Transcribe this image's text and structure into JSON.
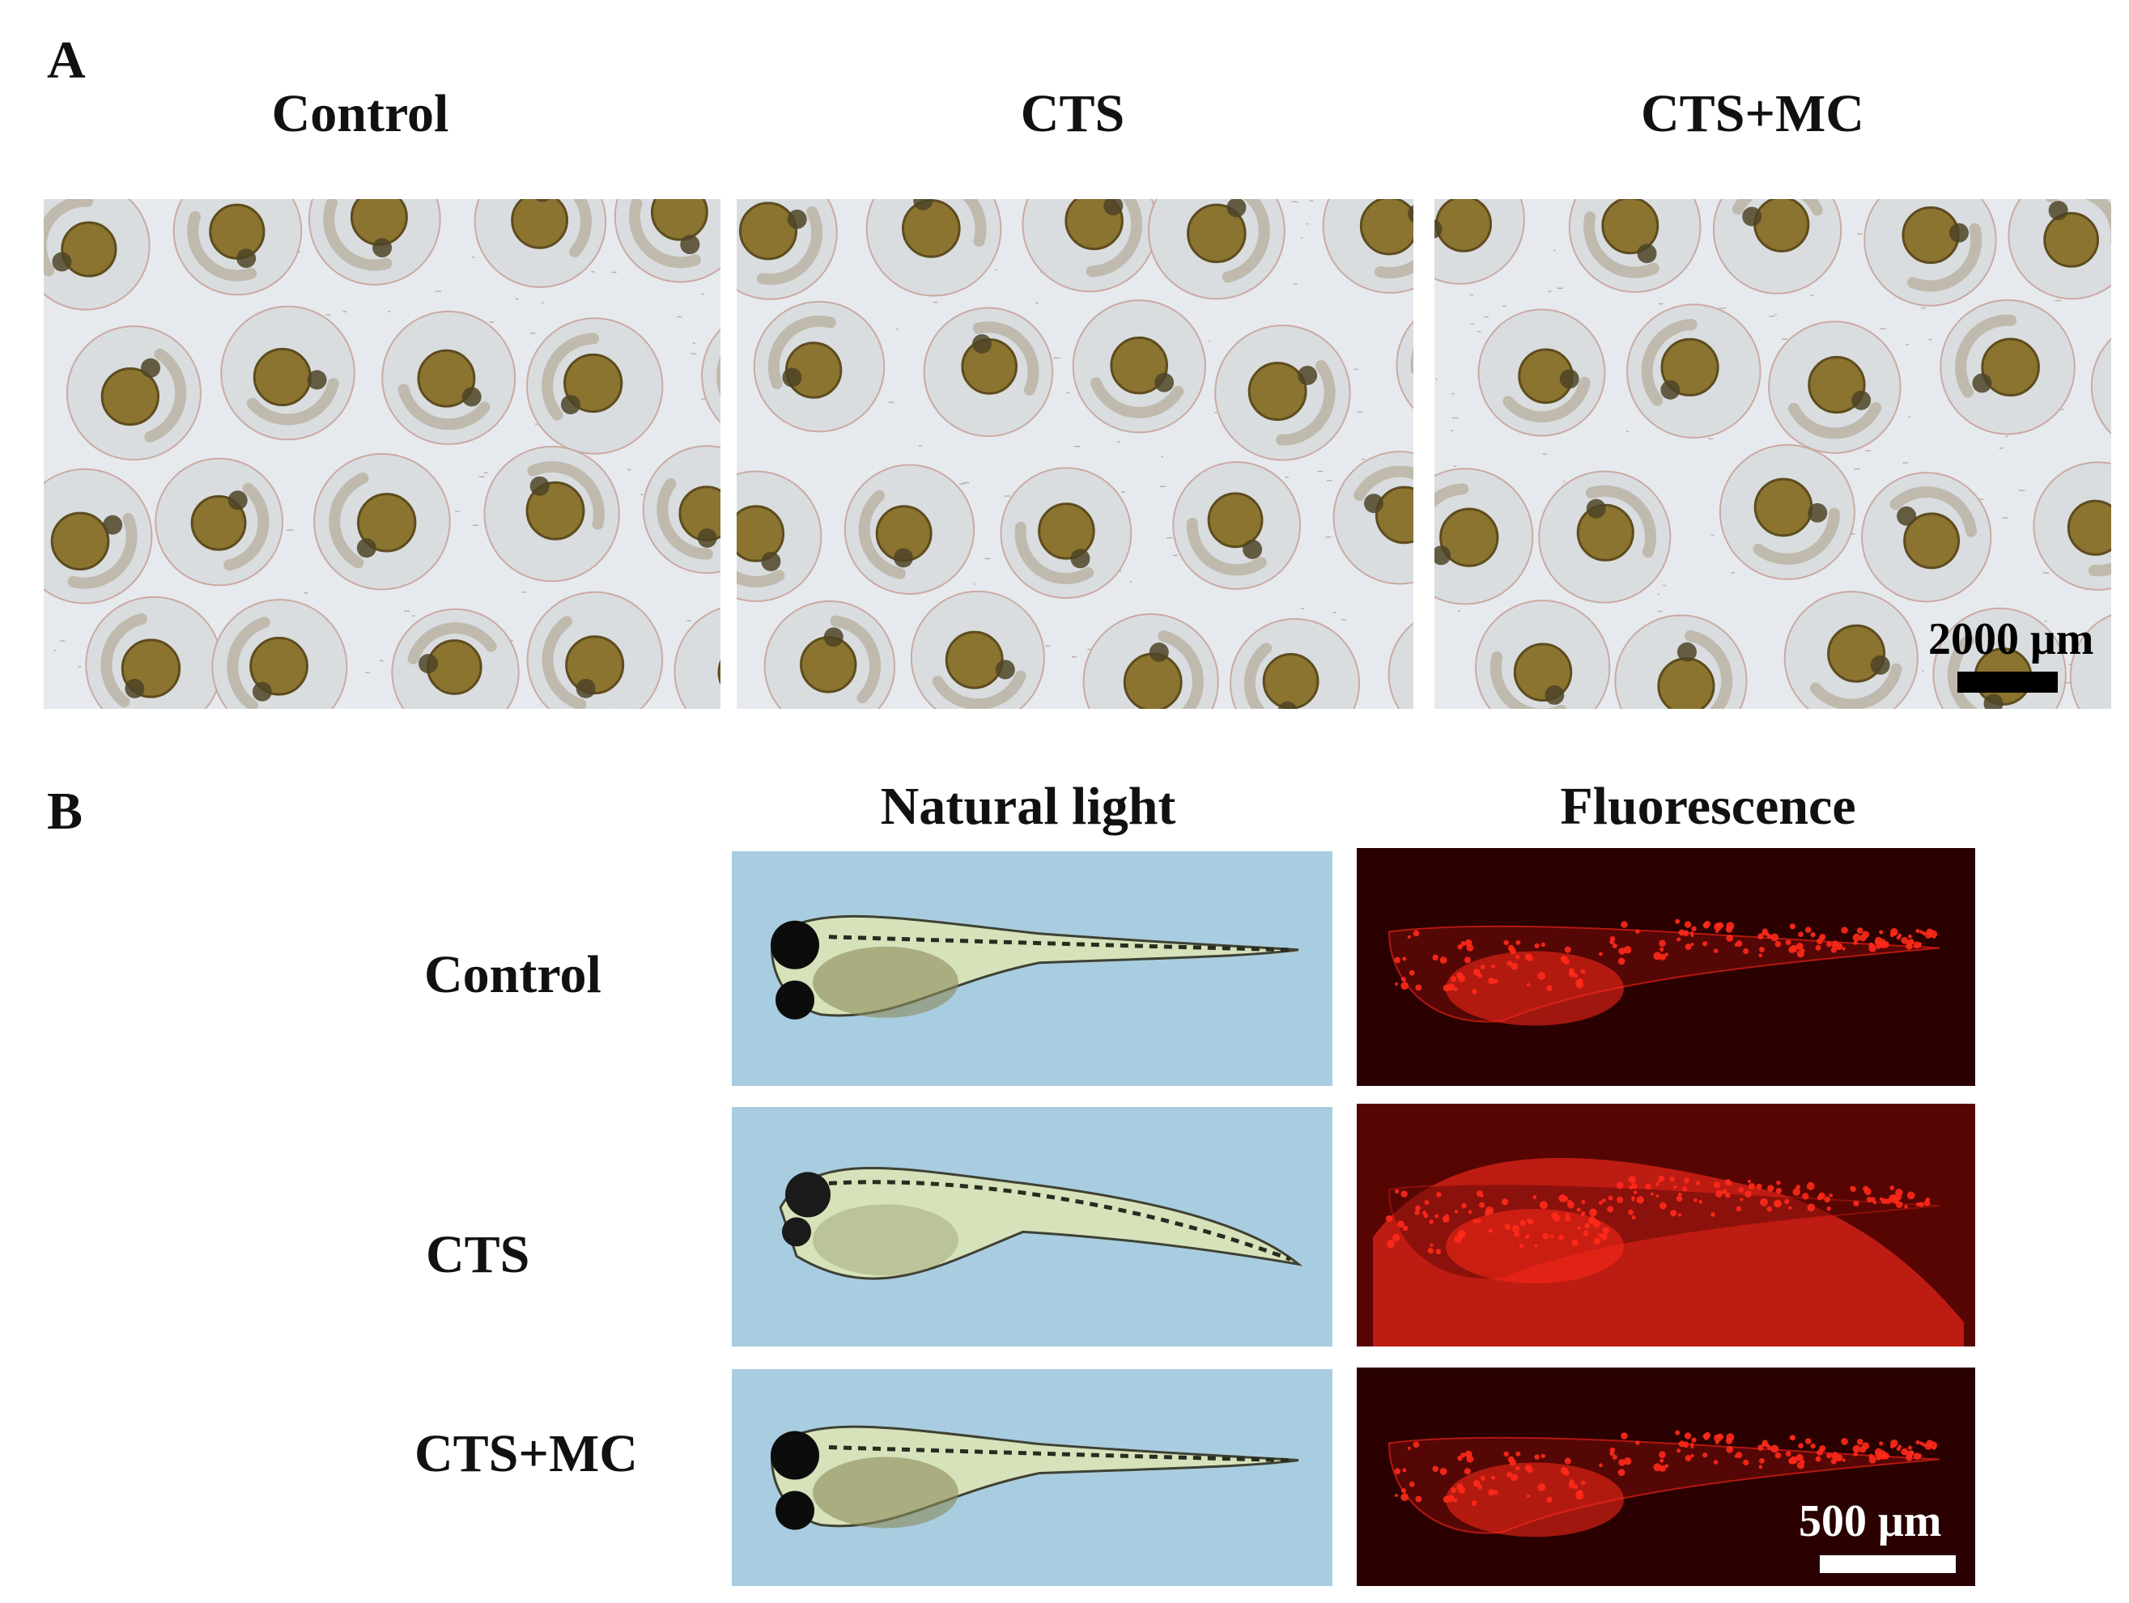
{
  "panel_a": {
    "letter": "A",
    "columns": [
      "Control",
      "CTS",
      "CTS+MC"
    ],
    "scale_bar": {
      "label": "2000 μm",
      "color": "#000000"
    }
  },
  "panel_b": {
    "letter": "B",
    "columns": [
      "Natural light",
      "Fluorescence"
    ],
    "rows": [
      "Control",
      "CTS",
      "CTS+MC"
    ],
    "scale_bar": {
      "label": "500 μm",
      "color": "#ffffff"
    }
  },
  "colors": {
    "egg_background": "#e6eaee",
    "yolk": "#8a7430",
    "natural_light_background": "#a9cde0",
    "fluorescence_background": "#2a0000",
    "fluorescence_signal": "#ff2a1a"
  }
}
